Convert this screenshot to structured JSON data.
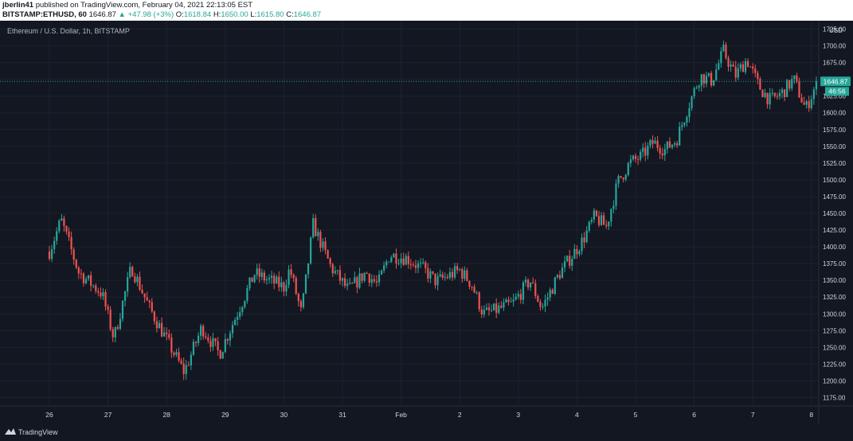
{
  "header": {
    "author": "jberlin41",
    "published_text": "published on TradingView.com, February 04, 2021 22:13:05 EST",
    "symbol": "BITSTAMP:ETHUSD, 60",
    "last": "1646.87",
    "change": "▲ +47.98 (+3%)",
    "o_label": "O:",
    "o_val": "1618.84",
    "h_label": "H:",
    "h_val": "1650.00",
    "l_label": "L:",
    "l_val": "1615.80",
    "c_label": "C:",
    "c_val": "1646.87"
  },
  "chart_data": {
    "type": "candlestick",
    "title": "Ethereum / U.S. Dollar, 1h, BITSTAMP",
    "currency": "USD",
    "ylim": [
      1162.5,
      1737.5
    ],
    "y_ticks": [
      1175,
      1200,
      1225,
      1250,
      1275,
      1300,
      1325,
      1350,
      1375,
      1400,
      1425,
      1450,
      1475,
      1500,
      1525,
      1550,
      1575,
      1600,
      1625,
      1650,
      1675,
      1700,
      1725
    ],
    "x_ticks": [
      "26",
      "27",
      "28",
      "29",
      "30",
      "31",
      "Feb",
      "2",
      "3",
      "4",
      "5",
      "6",
      "7",
      "8"
    ],
    "last_price": "1646.87",
    "countdown": "46:56",
    "grid": true,
    "colors": {
      "up": "#26a69a",
      "down": "#ef5350",
      "background": "#131722",
      "grid": "#1e2230"
    },
    "price_path": [
      {
        "day": 0.0,
        "close": 1393
      },
      {
        "day": 0.2,
        "close": 1440
      },
      {
        "day": 0.5,
        "close": 1362
      },
      {
        "day": 0.9,
        "close": 1330
      },
      {
        "day": 1.1,
        "close": 1263
      },
      {
        "day": 1.4,
        "close": 1370
      },
      {
        "day": 1.7,
        "close": 1310
      },
      {
        "day": 2.1,
        "close": 1245
      },
      {
        "day": 2.3,
        "close": 1213
      },
      {
        "day": 2.6,
        "close": 1280
      },
      {
        "day": 2.9,
        "close": 1240
      },
      {
        "day": 3.3,
        "close": 1320
      },
      {
        "day": 3.5,
        "close": 1360
      },
      {
        "day": 4.0,
        "close": 1340
      },
      {
        "day": 4.1,
        "close": 1368
      },
      {
        "day": 4.3,
        "close": 1300
      },
      {
        "day": 4.5,
        "close": 1433
      },
      {
        "day": 4.8,
        "close": 1370
      },
      {
        "day": 5.1,
        "close": 1335
      },
      {
        "day": 5.4,
        "close": 1362
      },
      {
        "day": 5.6,
        "close": 1343
      },
      {
        "day": 5.8,
        "close": 1388
      },
      {
        "day": 6.1,
        "close": 1383
      },
      {
        "day": 6.4,
        "close": 1365
      },
      {
        "day": 6.6,
        "close": 1348
      },
      {
        "day": 7.0,
        "close": 1365
      },
      {
        "day": 7.2,
        "close": 1345
      },
      {
        "day": 7.4,
        "close": 1300
      },
      {
        "day": 7.6,
        "close": 1305
      },
      {
        "day": 7.9,
        "close": 1315
      },
      {
        "day": 8.2,
        "close": 1350
      },
      {
        "day": 8.4,
        "close": 1308
      },
      {
        "day": 8.7,
        "close": 1360
      },
      {
        "day": 8.9,
        "close": 1385
      },
      {
        "day": 9.1,
        "close": 1410
      },
      {
        "day": 9.3,
        "close": 1445
      },
      {
        "day": 9.5,
        "close": 1430
      },
      {
        "day": 9.7,
        "close": 1497
      },
      {
        "day": 9.9,
        "close": 1525
      },
      {
        "day": 10.1,
        "close": 1535
      },
      {
        "day": 10.3,
        "close": 1556
      },
      {
        "day": 10.5,
        "close": 1545
      },
      {
        "day": 10.7,
        "close": 1560
      },
      {
        "day": 10.9,
        "close": 1610
      },
      {
        "day": 11.1,
        "close": 1655
      },
      {
        "day": 11.3,
        "close": 1648
      },
      {
        "day": 11.5,
        "close": 1692
      },
      {
        "day": 11.7,
        "close": 1655
      },
      {
        "day": 11.9,
        "close": 1680
      },
      {
        "day": 12.1,
        "close": 1640
      },
      {
        "day": 12.3,
        "close": 1618
      },
      {
        "day": 12.5,
        "close": 1630
      },
      {
        "day": 12.7,
        "close": 1650
      },
      {
        "day": 12.9,
        "close": 1605
      },
      {
        "day": 13.1,
        "close": 1646.87
      }
    ]
  },
  "footer": {
    "brand": "TradingView"
  }
}
